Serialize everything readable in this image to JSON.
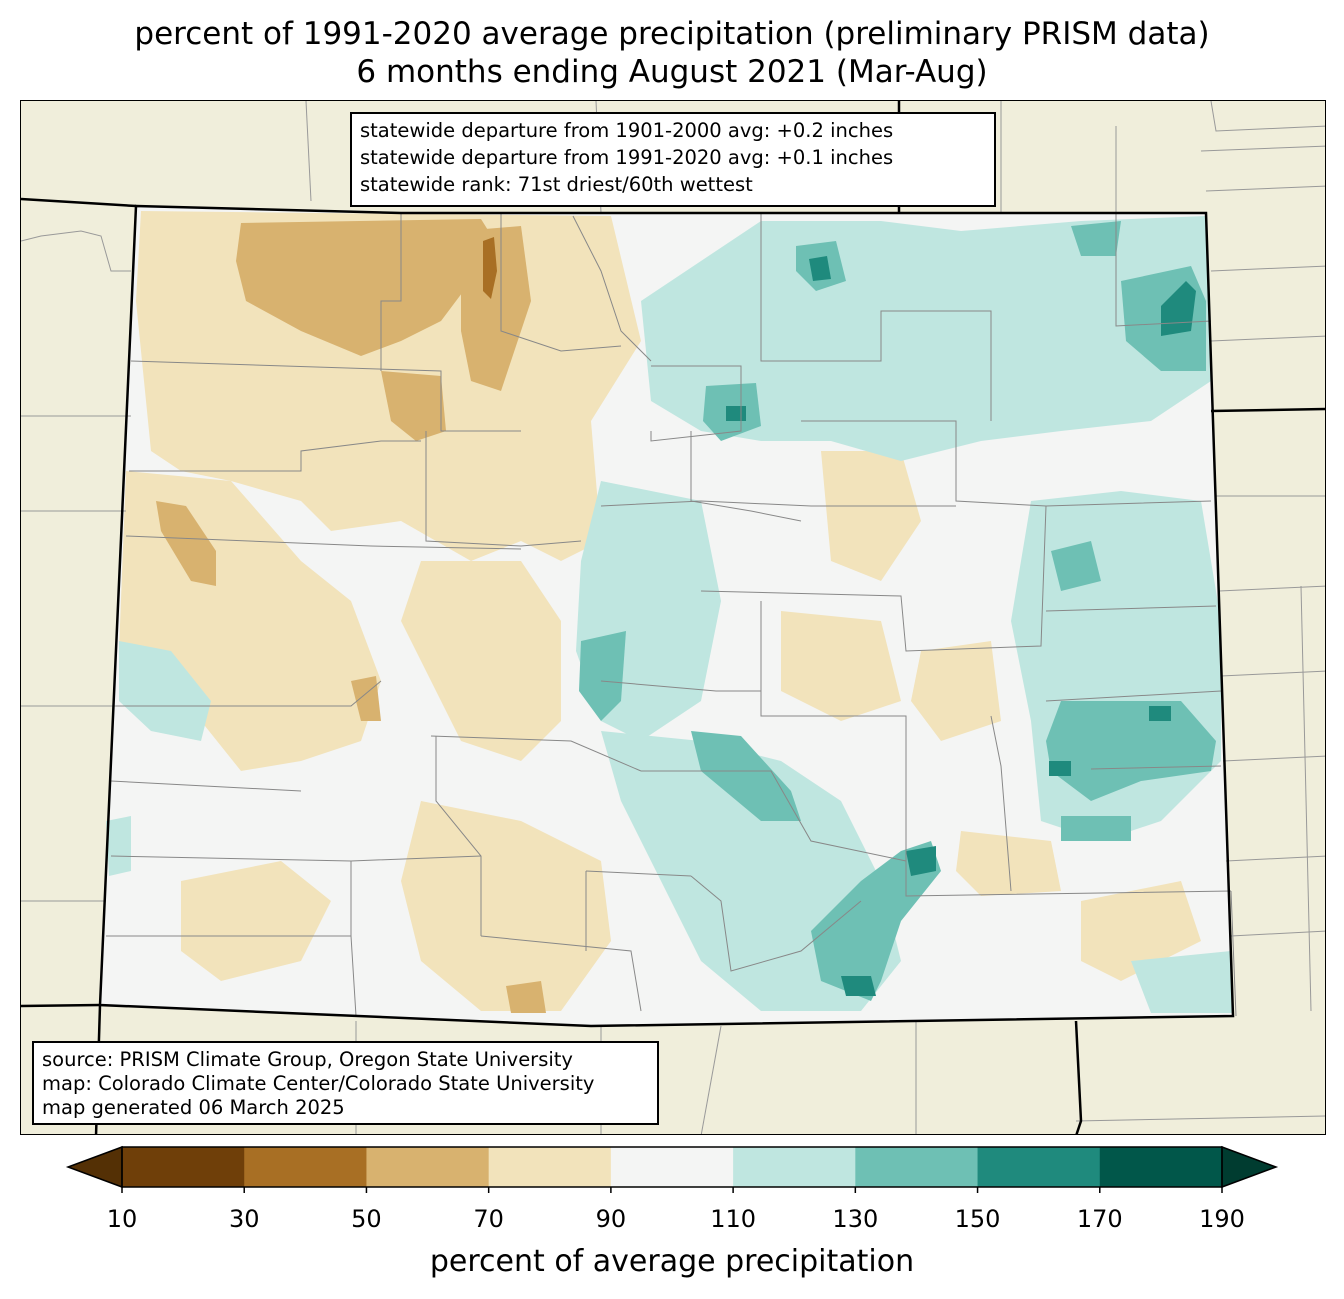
{
  "title": {
    "line1": "percent of 1991-2020 average precipitation (preliminary PRISM data)",
    "line2": "6 months ending August 2021 (Mar-Aug)"
  },
  "stats": {
    "line1": "statewide departure from 1901-2000 avg: +0.2 inches",
    "line2": "statewide departure from 1991-2020 avg: +0.1 inches",
    "line3": "statewide rank: 71st driest/60th wettest"
  },
  "source": {
    "line1": "source: PRISM Climate Group, Oregon State University",
    "line2": "map: Colorado Climate Center/Colorado State University",
    "line3": "map generated 06 March 2025"
  },
  "colorbar": {
    "label": "percent of average precipitation",
    "ticks": [
      "10",
      "30",
      "50",
      "70",
      "90",
      "110",
      "130",
      "150",
      "170",
      "190"
    ],
    "colors": [
      "#6f3f09",
      "#a86f24",
      "#d8b26f",
      "#f2e3bb",
      "#f4f5f4",
      "#bfe6e0",
      "#6ec0b4",
      "#1f8a7d",
      "#01574a"
    ],
    "under_color": "#543005",
    "over_color": "#003c30"
  },
  "map": {
    "land_color": "#f0eedb",
    "colors": {
      "c30_50": "#a86f24",
      "c50_70": "#d8b26f",
      "c70_90": "#f2e3bb",
      "c90_110": "#f4f5f4",
      "c110_130": "#bfe6e0",
      "c130_150": "#6ec0b4",
      "c150_170": "#1f8a7d",
      "c170_190": "#01574a"
    }
  }
}
